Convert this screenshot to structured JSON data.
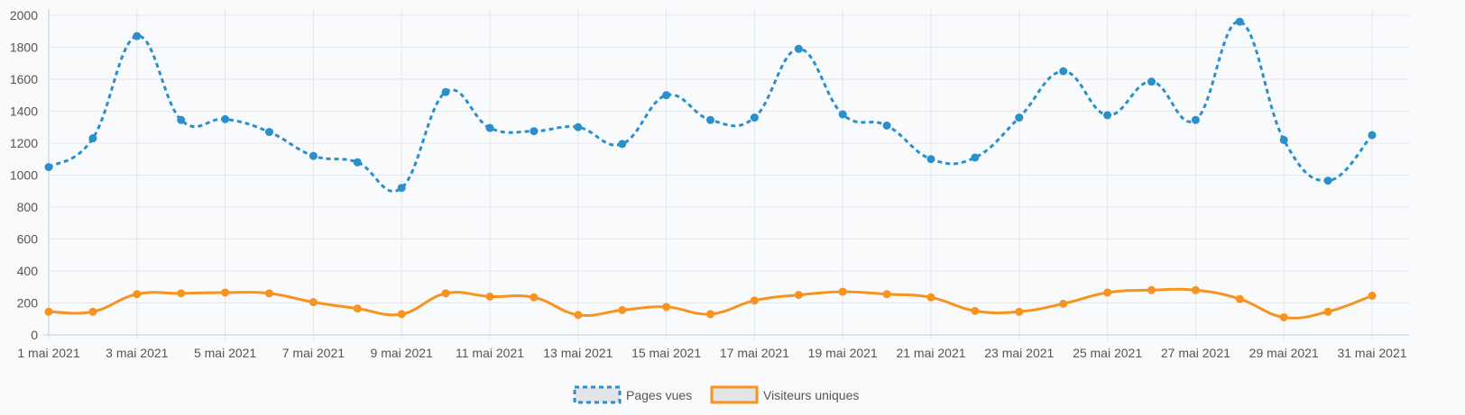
{
  "chart_data": {
    "type": "line",
    "x": [
      "1 mai 2021",
      "2 mai 2021",
      "3 mai 2021",
      "4 mai 2021",
      "5 mai 2021",
      "6 mai 2021",
      "7 mai 2021",
      "8 mai 2021",
      "9 mai 2021",
      "10 mai 2021",
      "11 mai 2021",
      "12 mai 2021",
      "13 mai 2021",
      "14 mai 2021",
      "15 mai 2021",
      "16 mai 2021",
      "17 mai 2021",
      "18 mai 2021",
      "19 mai 2021",
      "20 mai 2021",
      "21 mai 2021",
      "22 mai 2021",
      "23 mai 2021",
      "24 mai 2021",
      "25 mai 2021",
      "26 mai 2021",
      "27 mai 2021",
      "28 mai 2021",
      "29 mai 2021",
      "30 mai 2021",
      "31 mai 2021"
    ],
    "x_tick_labels": [
      "1 mai 2021",
      "3 mai 2021",
      "5 mai 2021",
      "7 mai 2021",
      "9 mai 2021",
      "11 mai 2021",
      "13 mai 2021",
      "15 mai 2021",
      "17 mai 2021",
      "19 mai 2021",
      "21 mai 2021",
      "23 mai 2021",
      "25 mai 2021",
      "27 mai 2021",
      "29 mai 2021",
      "31 mai 2021"
    ],
    "y_ticks": [
      0,
      200,
      400,
      600,
      800,
      1000,
      1200,
      1400,
      1600,
      1800,
      2000
    ],
    "ylim": [
      0,
      2000
    ],
    "grid": true,
    "legend_position": "bottom-center",
    "series": [
      {
        "name": "Pages vues",
        "color": "#2a8fca",
        "dashed": true,
        "values": [
          1050,
          1230,
          1870,
          1345,
          1350,
          1270,
          1120,
          1080,
          920,
          1520,
          1295,
          1275,
          1300,
          1195,
          1500,
          1345,
          1360,
          1790,
          1380,
          1310,
          1100,
          1110,
          1360,
          1650,
          1375,
          1585,
          1345,
          1960,
          1220,
          965,
          1250
        ]
      },
      {
        "name": "Visiteurs uniques",
        "color": "#f7931e",
        "dashed": false,
        "values": [
          145,
          145,
          255,
          260,
          265,
          260,
          205,
          165,
          130,
          260,
          240,
          235,
          125,
          155,
          175,
          130,
          215,
          250,
          270,
          255,
          235,
          150,
          145,
          195,
          265,
          280,
          280,
          225,
          110,
          145,
          245
        ]
      }
    ]
  }
}
